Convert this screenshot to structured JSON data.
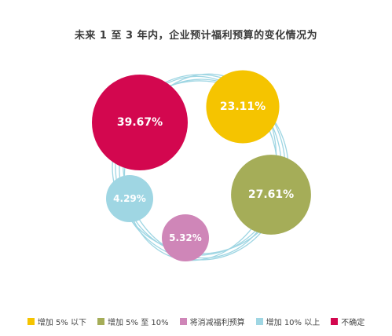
{
  "chart_data": {
    "type": "bubble",
    "title": "未来 1 至 3 年内，企业预计福利预算的变化情况为",
    "categories": [
      "增加 5% 以下",
      "增加 5% 至 10%",
      "将消减福利预算",
      "增加 10% 以上",
      "不确定"
    ],
    "values": [
      23.11,
      27.61,
      5.32,
      4.29,
      39.67
    ],
    "labels": [
      "23.11%",
      "27.61%",
      "5.32%",
      "4.29%",
      "39.67%"
    ],
    "colors": [
      "#f5c400",
      "#a5ad58",
      "#cf86b8",
      "#9fd6e3",
      "#d3074f"
    ],
    "ring_color": "#9fd6e3",
    "legend_position": "bottom"
  }
}
